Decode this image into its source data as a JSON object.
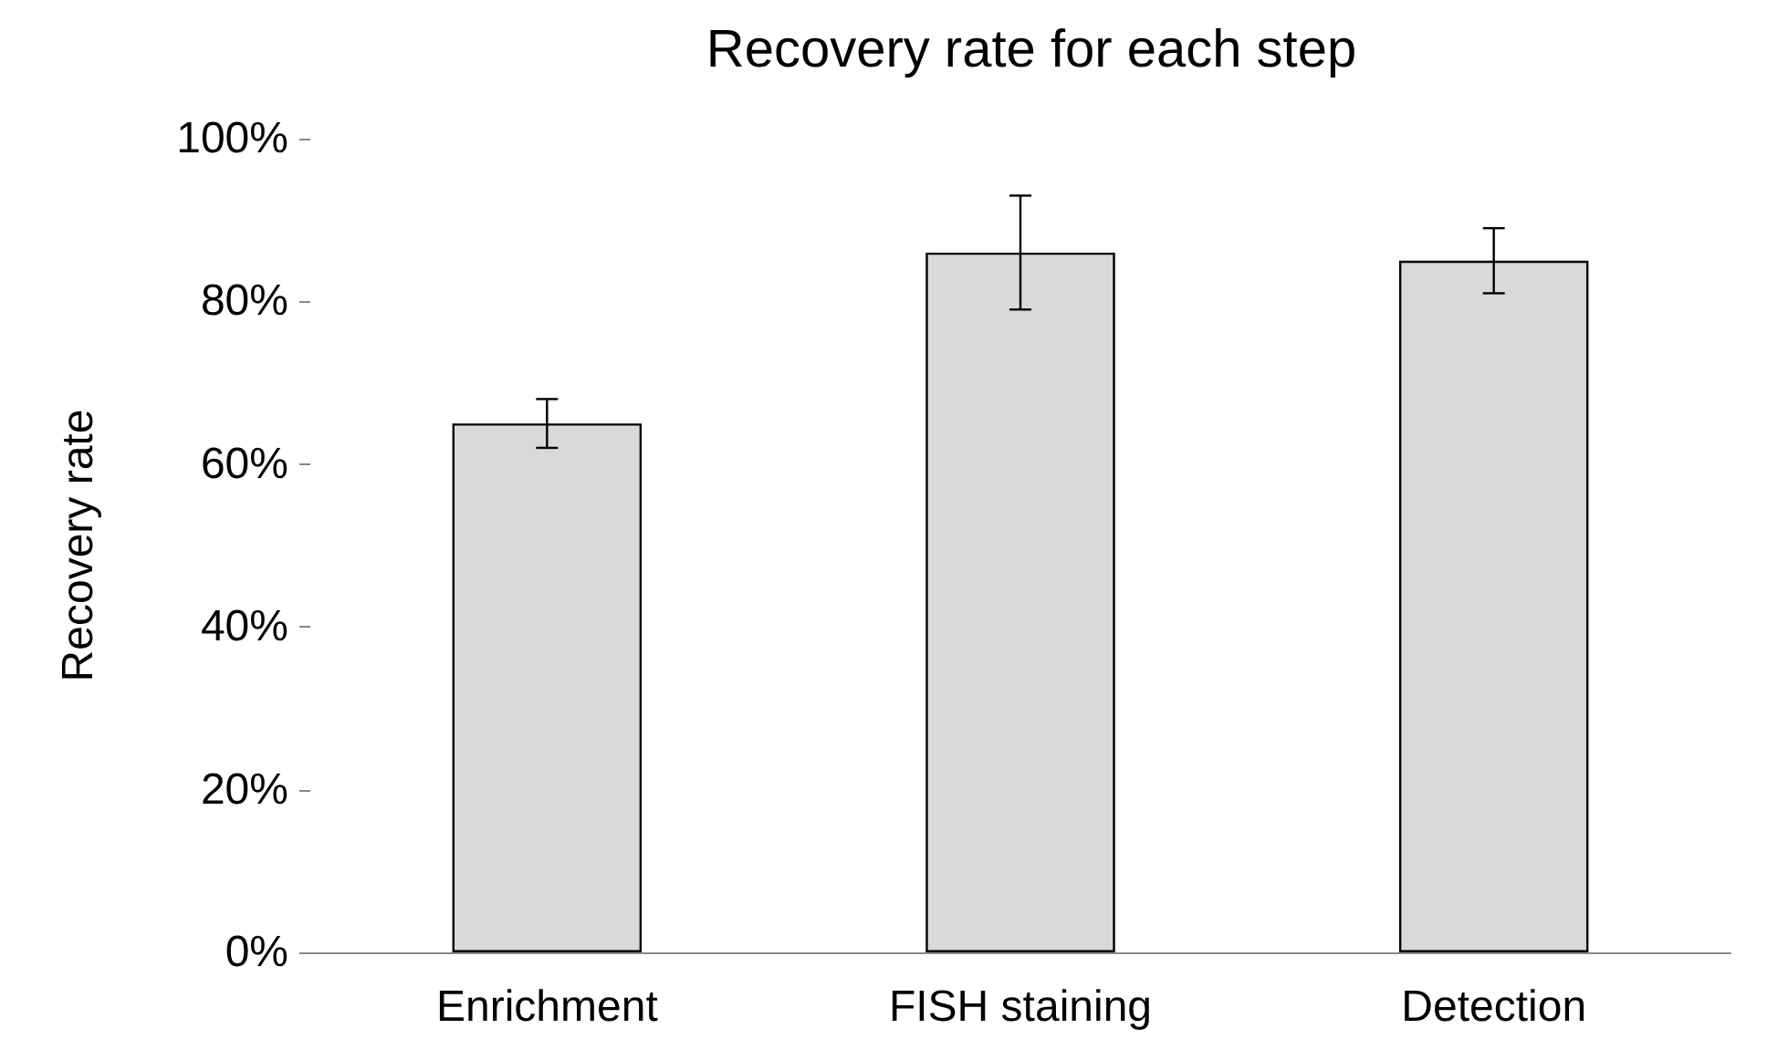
{
  "chart_data": {
    "type": "bar",
    "title": "Recovery rate for each step",
    "ylabel": "Recovery rate",
    "categories": [
      "Enrichment",
      "FISH staining",
      "Detection"
    ],
    "values": [
      65,
      86,
      85
    ],
    "errors": [
      3,
      7,
      4
    ],
    "color": "#d9d9d9",
    "ylim": [
      0,
      100
    ],
    "yticks": [
      {
        "value": 0,
        "label": "0%"
      },
      {
        "value": 20,
        "label": "20%"
      },
      {
        "value": 40,
        "label": "40%"
      },
      {
        "value": 60,
        "label": "60%"
      },
      {
        "value": 80,
        "label": "80%"
      },
      {
        "value": 100,
        "label": "100%"
      }
    ],
    "grid": false
  }
}
